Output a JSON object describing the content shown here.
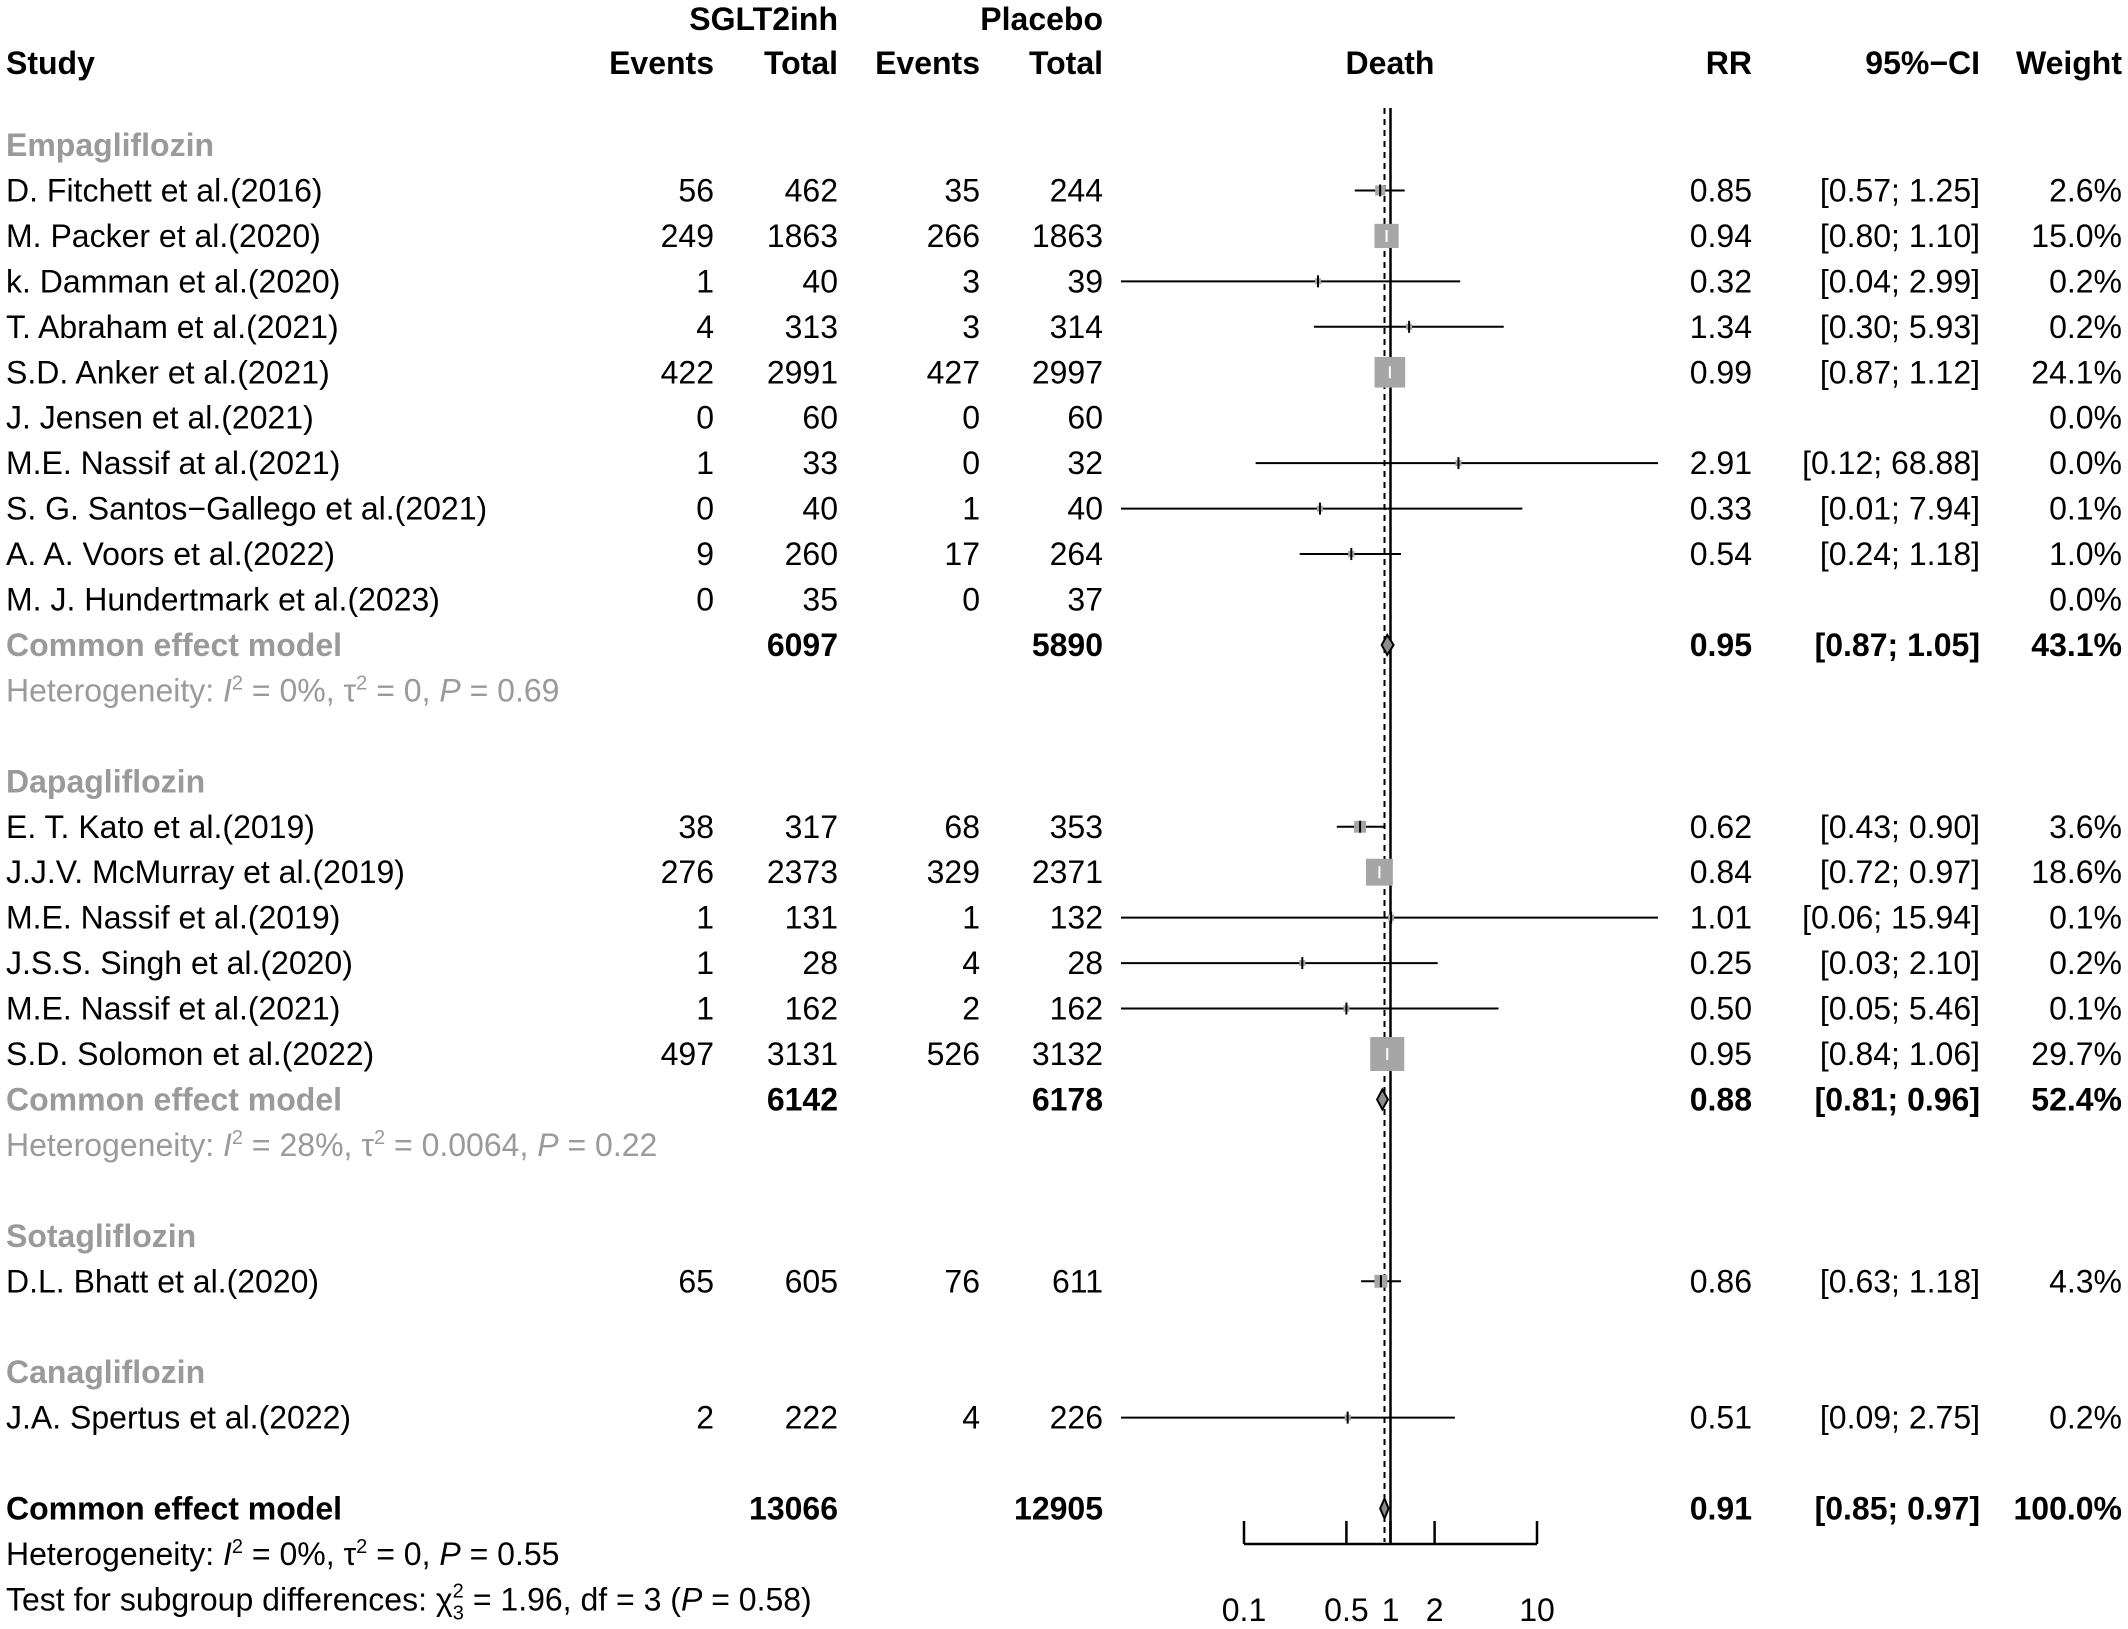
{
  "header": {
    "group1": "SGLT2inh",
    "group2": "Placebo",
    "study": "Study",
    "events": "Events",
    "total": "Total",
    "plot_label": "Death",
    "rr": "RR",
    "ci": "95%−CI",
    "weight": "Weight"
  },
  "rows": [
    {
      "kind": "group",
      "label": "Empagliflozin"
    },
    {
      "kind": "study",
      "study": "D. Fitchett et al.(2016)",
      "e1": "56",
      "n1": "462",
      "e2": "35",
      "n2": "244",
      "rr": 0.85,
      "lo": 0.57,
      "hi": 1.25,
      "rr_text": "0.85",
      "ci_text": "[0.57;  1.25]",
      "weight_text": "2.6%",
      "w": 2.6
    },
    {
      "kind": "study",
      "study": "M. Packer et al.(2020)",
      "e1": "249",
      "n1": "1863",
      "e2": "266",
      "n2": "1863",
      "rr": 0.94,
      "lo": 0.8,
      "hi": 1.1,
      "rr_text": "0.94",
      "ci_text": "[0.80;  1.10]",
      "weight_text": "15.0%",
      "w": 15.0
    },
    {
      "kind": "study",
      "study": "k. Damman et al.(2020)",
      "e1": "1",
      "n1": "40",
      "e2": "3",
      "n2": "39",
      "rr": 0.32,
      "lo": 0.04,
      "hi": 2.99,
      "rr_text": "0.32",
      "ci_text": "[0.04;  2.99]",
      "weight_text": "0.2%",
      "w": 0.2
    },
    {
      "kind": "study",
      "study": "T. Abraham et al.(2021)",
      "e1": "4",
      "n1": "313",
      "e2": "3",
      "n2": "314",
      "rr": 1.34,
      "lo": 0.3,
      "hi": 5.93,
      "rr_text": "1.34",
      "ci_text": "[0.30;  5.93]",
      "weight_text": "0.2%",
      "w": 0.2
    },
    {
      "kind": "study",
      "study": "S.D. Anker et al.(2021)",
      "e1": "422",
      "n1": "2991",
      "e2": "427",
      "n2": "2997",
      "rr": 0.99,
      "lo": 0.87,
      "hi": 1.12,
      "rr_text": "0.99",
      "ci_text": "[0.87;  1.12]",
      "weight_text": "24.1%",
      "w": 24.1
    },
    {
      "kind": "study",
      "study": "J. Jensen et al.(2021)",
      "e1": "0",
      "n1": "60",
      "e2": "0",
      "n2": "60",
      "rr": null,
      "lo": null,
      "hi": null,
      "rr_text": "",
      "ci_text": "",
      "weight_text": "0.0%",
      "w": 0
    },
    {
      "kind": "study",
      "study": "M.E. Nassif at al.(2021)",
      "e1": "1",
      "n1": "33",
      "e2": "0",
      "n2": "32",
      "rr": 2.91,
      "lo": 0.12,
      "hi": 68.88,
      "rr_text": "2.91",
      "ci_text": "[0.12; 68.88]",
      "weight_text": "0.0%",
      "w": 0.0
    },
    {
      "kind": "study",
      "study": "S. G. Santos−Gallego et al.(2021)",
      "e1": "0",
      "n1": "40",
      "e2": "1",
      "n2": "40",
      "rr": 0.33,
      "lo": 0.01,
      "hi": 7.94,
      "rr_text": "0.33",
      "ci_text": "[0.01;  7.94]",
      "weight_text": "0.1%",
      "w": 0.1
    },
    {
      "kind": "study",
      "study": "A. A. Voors et al.(2022)",
      "e1": "9",
      "n1": "260",
      "e2": "17",
      "n2": "264",
      "rr": 0.54,
      "lo": 0.24,
      "hi": 1.18,
      "rr_text": "0.54",
      "ci_text": "[0.24;  1.18]",
      "weight_text": "1.0%",
      "w": 1.0
    },
    {
      "kind": "study",
      "study": "M. J. Hundertmark et al.(2023)",
      "e1": "0",
      "n1": "35",
      "e2": "0",
      "n2": "37",
      "rr": null,
      "lo": null,
      "hi": null,
      "rr_text": "",
      "ci_text": "",
      "weight_text": "0.0%",
      "w": 0
    },
    {
      "kind": "subtotal",
      "label": "Common effect model",
      "n1": "6097",
      "n2": "5890",
      "rr": 0.95,
      "lo": 0.87,
      "hi": 1.05,
      "rr_text": "0.95",
      "ci_text": "[0.87;  1.05]",
      "weight_text": "43.1%"
    },
    {
      "kind": "het",
      "prefix": "Heterogeneity: ",
      "i2": "I",
      "i2_sup": "2",
      "i2_val": " = 0%, ",
      "tau": "τ",
      "tau_sup": "2",
      "tau_val": " = 0, ",
      "p": "P",
      "p_val": " = 0.69"
    },
    {
      "kind": "spacer"
    },
    {
      "kind": "group",
      "label": "Dapagliflozin"
    },
    {
      "kind": "study",
      "study": "E.  T. Kato et al.(2019)",
      "e1": "38",
      "n1": "317",
      "e2": "68",
      "n2": "353",
      "rr": 0.62,
      "lo": 0.43,
      "hi": 0.9,
      "rr_text": "0.62",
      "ci_text": "[0.43;  0.90]",
      "weight_text": "3.6%",
      "w": 3.6
    },
    {
      "kind": "study",
      "study": "J.J.V. McMurray et al.(2019)",
      "e1": "276",
      "n1": "2373",
      "e2": "329",
      "n2": "2371",
      "rr": 0.84,
      "lo": 0.72,
      "hi": 0.97,
      "rr_text": "0.84",
      "ci_text": "[0.72;  0.97]",
      "weight_text": "18.6%",
      "w": 18.6
    },
    {
      "kind": "study",
      "study": "M.E. Nassif et al.(2019)",
      "e1": "1",
      "n1": "131",
      "e2": "1",
      "n2": "132",
      "rr": 1.01,
      "lo": 0.06,
      "hi": 15.94,
      "rr_text": "1.01",
      "ci_text": "[0.06; 15.94]",
      "weight_text": "0.1%",
      "w": 0.1
    },
    {
      "kind": "study",
      "study": "J.S.S. Singh et al.(2020)",
      "e1": "1",
      "n1": "28",
      "e2": "4",
      "n2": "28",
      "rr": 0.25,
      "lo": 0.03,
      "hi": 2.1,
      "rr_text": "0.25",
      "ci_text": "[0.03;  2.10]",
      "weight_text": "0.2%",
      "w": 0.2
    },
    {
      "kind": "study",
      "study": "M.E. Nassif et al.(2021)",
      "e1": "1",
      "n1": "162",
      "e2": "2",
      "n2": "162",
      "rr": 0.5,
      "lo": 0.05,
      "hi": 5.46,
      "rr_text": "0.50",
      "ci_text": "[0.05;  5.46]",
      "weight_text": "0.1%",
      "w": 0.1
    },
    {
      "kind": "study",
      "study": "S.D. Solomon et al.(2022)",
      "e1": "497",
      "n1": "3131",
      "e2": "526",
      "n2": "3132",
      "rr": 0.95,
      "lo": 0.84,
      "hi": 1.06,
      "rr_text": "0.95",
      "ci_text": "[0.84;  1.06]",
      "weight_text": "29.7%",
      "w": 29.7
    },
    {
      "kind": "subtotal",
      "label": "Common effect model",
      "n1": "6142",
      "n2": "6178",
      "rr": 0.88,
      "lo": 0.81,
      "hi": 0.96,
      "rr_text": "0.88",
      "ci_text": "[0.81;  0.96]",
      "weight_text": "52.4%"
    },
    {
      "kind": "het",
      "prefix": "Heterogeneity: ",
      "i2": "I",
      "i2_sup": "2",
      "i2_val": " = 28%, ",
      "tau": "τ",
      "tau_sup": "2",
      "tau_val": " = 0.0064, ",
      "p": "P",
      "p_val": " = 0.22"
    },
    {
      "kind": "spacer"
    },
    {
      "kind": "group",
      "label": "Sotagliflozin"
    },
    {
      "kind": "study",
      "study": "D.L. Bhatt et al.(2020)",
      "e1": "65",
      "n1": "605",
      "e2": "76",
      "n2": "611",
      "rr": 0.86,
      "lo": 0.63,
      "hi": 1.18,
      "rr_text": "0.86",
      "ci_text": "[0.63;  1.18]",
      "weight_text": "4.3%",
      "w": 4.3
    },
    {
      "kind": "spacer"
    },
    {
      "kind": "group",
      "label": "Canagliflozin"
    },
    {
      "kind": "study",
      "study": "J.A. Spertus et al.(2022)",
      "e1": "2",
      "n1": "222",
      "e2": "4",
      "n2": "226",
      "rr": 0.51,
      "lo": 0.09,
      "hi": 2.75,
      "rr_text": "0.51",
      "ci_text": "[0.09;  2.75]",
      "weight_text": "0.2%",
      "w": 0.2
    },
    {
      "kind": "spacer"
    },
    {
      "kind": "overall",
      "label": "Common effect model",
      "n1": "13066",
      "n2": "12905",
      "rr": 0.91,
      "lo": 0.85,
      "hi": 0.97,
      "rr_text": "0.91",
      "ci_text": "[0.85;  0.97]",
      "weight_text": "100.0%"
    },
    {
      "kind": "het",
      "dark": true,
      "prefix": "Heterogeneity: ",
      "i2": "I",
      "i2_sup": "2",
      "i2_val": " = 0%, ",
      "tau": "τ",
      "tau_sup": "2",
      "tau_val": " = 0, ",
      "p": "P",
      "p_val": " = 0.55"
    },
    {
      "kind": "subgroup_test",
      "prefix": "Test for subgroup differences: ",
      "chi": "χ",
      "chi_sup": "2",
      "chi_sub": "3",
      "chi_val": " = 1.96, df = 3 (",
      "p": "P",
      "p_val": " = 0.58)"
    }
  ],
  "chart_data": {
    "type": "forest",
    "axis": {
      "scale": "log",
      "ticks": [
        0.1,
        0.5,
        1,
        2,
        10
      ],
      "tick_labels": [
        "0.1",
        "0.5",
        "1",
        "2",
        "10"
      ],
      "range": [
        0.1,
        10
      ]
    },
    "reference_line": 1,
    "pooled_line": 0.91,
    "colors": {
      "box": "#a6a6a6",
      "group_label": "#9a9a9a",
      "line": "#000000"
    }
  }
}
